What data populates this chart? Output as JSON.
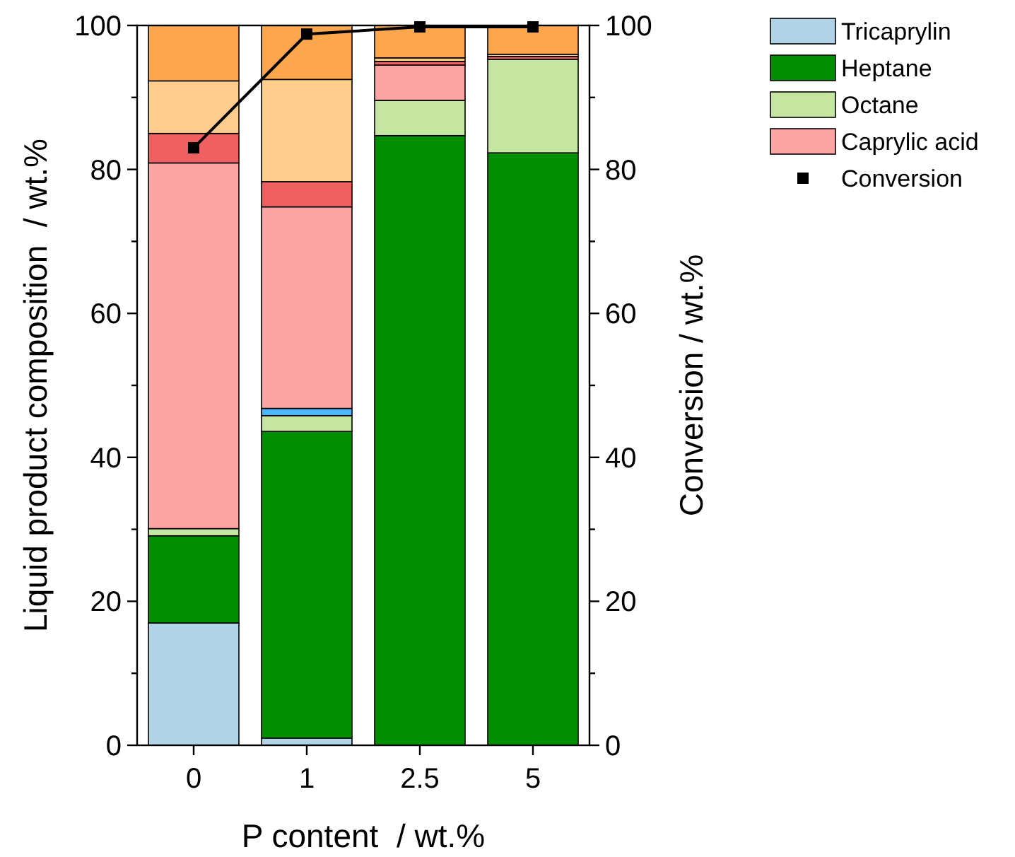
{
  "chart_data": {
    "type": "bar",
    "stacked": true,
    "categories": [
      "0",
      "1",
      "2.5",
      "5"
    ],
    "xlabel": "P content  / wt.%",
    "ylabel": "Liquid product composition  / wt.%",
    "y2label": "Conversion / wt.%",
    "ylim": [
      0,
      100
    ],
    "yticks": [
      0,
      {
        "value": 10,
        "label": null
      },
      20,
      {
        "value": 30,
        "label": null
      },
      40,
      {
        "value": 50,
        "label": null
      },
      60,
      {
        "value": 70,
        "label": null
      },
      80,
      {
        "value": 90,
        "label": null
      },
      100
    ],
    "y2lim": [
      0,
      100
    ],
    "y2ticks": [
      0,
      {
        "value": 10,
        "label": null
      },
      20,
      {
        "value": 30,
        "label": null
      },
      40,
      {
        "value": 50,
        "label": null
      },
      60,
      {
        "value": 70,
        "label": null
      },
      80,
      {
        "value": 90,
        "label": null
      },
      100
    ],
    "legend": "top right",
    "grid": false,
    "series": [
      {
        "name": "Tricaprylin",
        "color": "#b0d4e6",
        "values": [
          17,
          1,
          0,
          0
        ]
      },
      {
        "name": "Heptane",
        "color": "#008f00",
        "values": [
          12.1,
          42.6,
          84.7,
          82.3
        ]
      },
      {
        "name": "Octane",
        "color": "#c4e6a0",
        "values": [
          1,
          2.2,
          4.9,
          13
        ]
      },
      {
        "color": "#4db8ff",
        "values": [
          0,
          1,
          0,
          0
        ]
      },
      {
        "name": "Caprylic acid",
        "color": "#fca3a3",
        "values": [
          50.8,
          28,
          4.9,
          0
        ]
      },
      {
        "color": "#ef6060",
        "values": [
          4.1,
          3.5,
          0.5,
          0.4
        ]
      },
      {
        "color": "#fdcd8c",
        "values": [
          7.3,
          14.2,
          0.5,
          0.3
        ]
      },
      {
        "color": "#fca64e",
        "values": [
          7.7,
          7.5,
          4.5,
          4
        ]
      },
      {
        "name": "Conversion",
        "type": "line",
        "axis": "y2",
        "color": "#000000",
        "marker": "square",
        "line_style": "solid",
        "values": [
          83,
          98.8,
          99.8,
          99.8
        ]
      }
    ]
  }
}
